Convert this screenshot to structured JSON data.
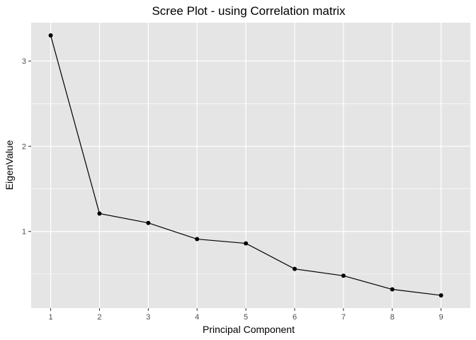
{
  "chart_data": {
    "type": "line",
    "title": "Scree Plot - using Correlation matrix",
    "xlabel": "Principal Component",
    "ylabel": "EigenValue",
    "x": [
      1,
      2,
      3,
      4,
      5,
      6,
      7,
      8,
      9
    ],
    "y": [
      3.3,
      1.21,
      1.1,
      0.91,
      0.86,
      0.56,
      0.48,
      0.32,
      0.25
    ],
    "xticks": [
      "1",
      "2",
      "3",
      "4",
      "5",
      "6",
      "7",
      "8",
      "9"
    ],
    "yticks": [
      "1",
      "2",
      "3"
    ],
    "xlim": [
      0.6,
      9.6
    ],
    "ylim": [
      0.1,
      3.45
    ],
    "grid": true,
    "legend": "none",
    "colors": {
      "panel_background": "#e5e5e5",
      "grid": "#ffffff",
      "line": "#000000",
      "point": "#000000"
    }
  }
}
